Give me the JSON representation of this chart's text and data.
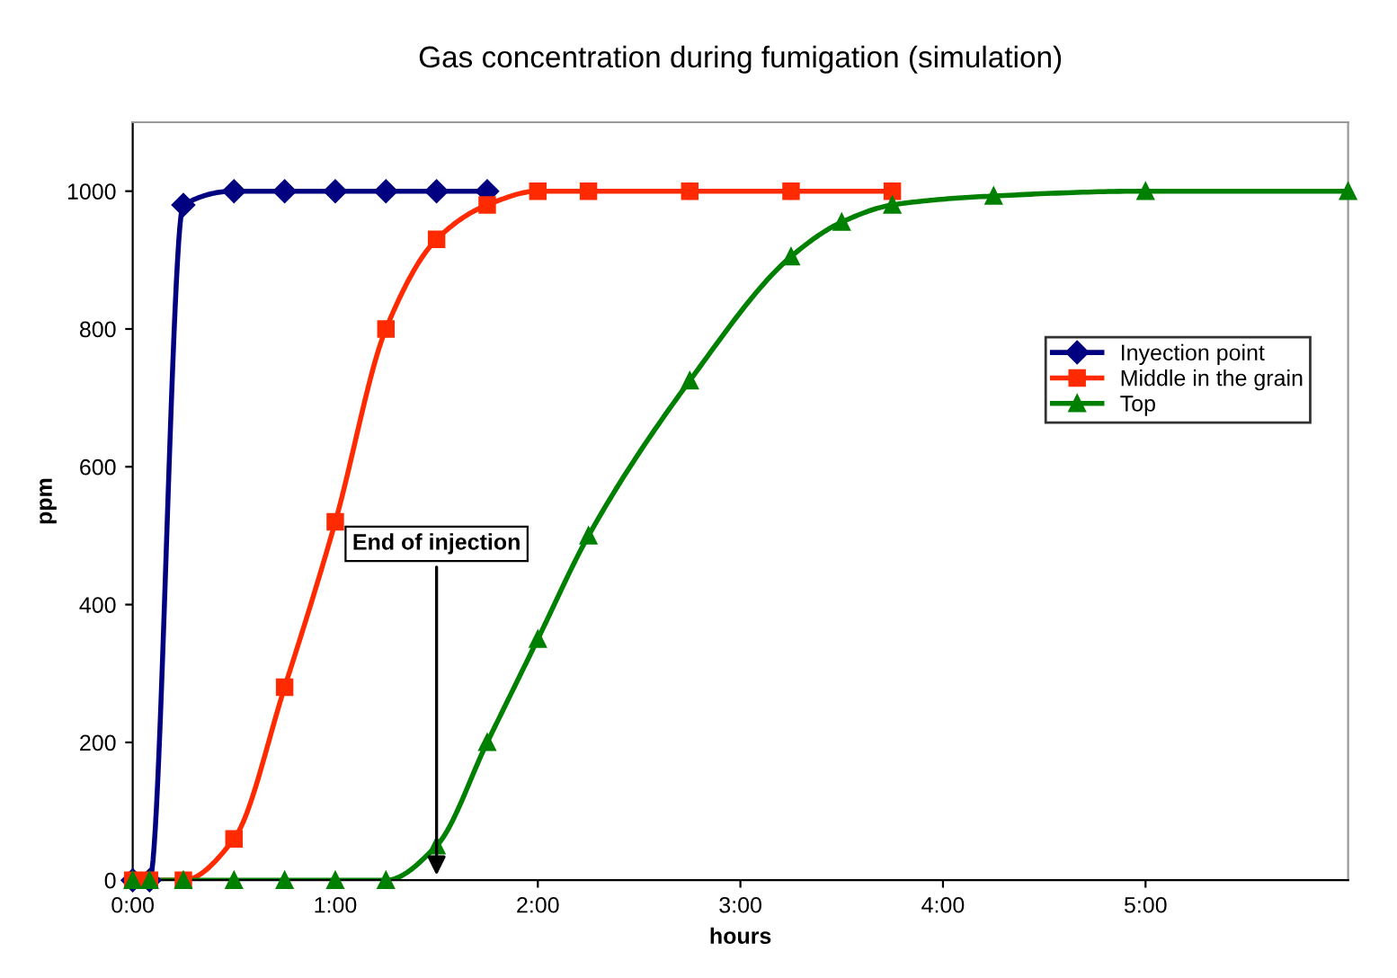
{
  "chart_data": {
    "type": "line",
    "title": "Gas concentration during fumigation (simulation)",
    "xlabel": "hours",
    "ylabel": "ppm",
    "xlim": [
      0,
      6
    ],
    "ylim": [
      0,
      1100
    ],
    "xticks": [
      {
        "value": 0,
        "label": "0:00"
      },
      {
        "value": 1,
        "label": "1:00"
      },
      {
        "value": 2,
        "label": "2:00"
      },
      {
        "value": 3,
        "label": "3:00"
      },
      {
        "value": 4,
        "label": "4:00"
      },
      {
        "value": 5,
        "label": "5:00"
      }
    ],
    "yticks": [
      0,
      200,
      400,
      600,
      800,
      1000
    ],
    "grid": false,
    "legend": "center right",
    "line_style": "solid",
    "series": [
      {
        "name": "Inyection point",
        "color": "#000080",
        "marker": "diamond",
        "x": [
          0,
          0.083,
          0.25,
          0.5,
          0.75,
          1,
          1.25,
          1.5,
          1.75
        ],
        "values": [
          0,
          0,
          980,
          1000,
          1000,
          1000,
          1000,
          1000,
          1000
        ]
      },
      {
        "name": "Middle in the grain",
        "color": "#ff2a00",
        "marker": "square",
        "x": [
          0,
          0.083,
          0.25,
          0.5,
          0.75,
          1,
          1.25,
          1.5,
          1.75,
          2,
          2.25,
          2.75,
          3.25,
          3.75
        ],
        "values": [
          0,
          0,
          0,
          60,
          280,
          520,
          800,
          930,
          980,
          1000,
          1000,
          1000,
          1000,
          1000
        ]
      },
      {
        "name": "Top",
        "color": "#008000",
        "marker": "triangle",
        "x": [
          0,
          0.083,
          0.25,
          0.5,
          0.75,
          1,
          1.25,
          1.5,
          1.75,
          2,
          2.25,
          2.75,
          3.25,
          3.5,
          3.75,
          4.25,
          5,
          6
        ],
        "values": [
          0,
          0,
          0,
          0,
          0,
          0,
          0,
          50,
          200,
          350,
          500,
          725,
          905,
          955,
          980,
          993,
          1000,
          1000
        ]
      }
    ],
    "annotations": [
      "End of injection"
    ]
  }
}
